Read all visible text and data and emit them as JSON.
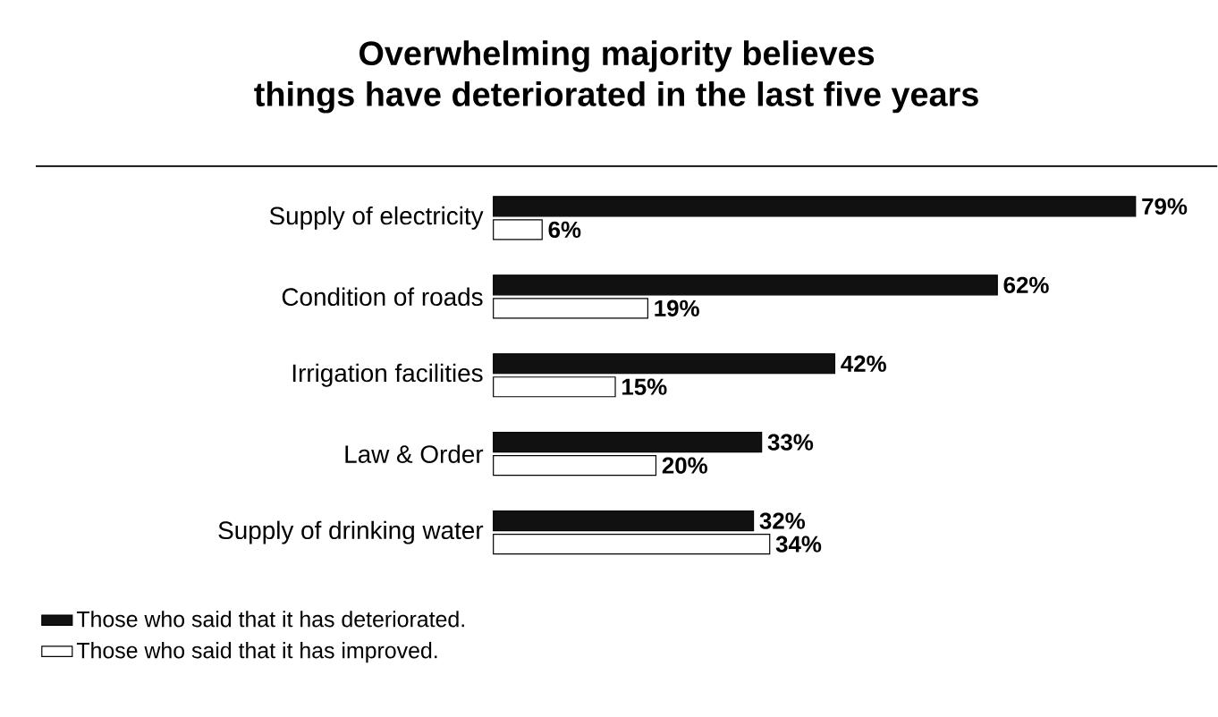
{
  "chart_data": {
    "type": "bar",
    "orientation": "horizontal",
    "title": "Overwhelming majority believes\nthings have deteriorated in the last five years",
    "categories": [
      "Supply of electricity",
      "Condition of roads",
      "Irrigation facilities",
      "Law & Order",
      "Supply of drinking water"
    ],
    "series": [
      {
        "name": "Those who said that it has deteriorated.",
        "color": "#111111",
        "values": [
          79,
          62,
          42,
          33,
          32
        ],
        "value_labels": [
          "79%",
          "62%",
          "42%",
          "33%",
          "32%"
        ]
      },
      {
        "name": "Those who said that it has improved.",
        "color": "#ffffff",
        "values": [
          6,
          19,
          15,
          20,
          34
        ],
        "value_labels": [
          "6%",
          "19%",
          "15%",
          "20%",
          "34%"
        ]
      }
    ],
    "tick_labels": "y",
    "legend": "bottom left"
  }
}
